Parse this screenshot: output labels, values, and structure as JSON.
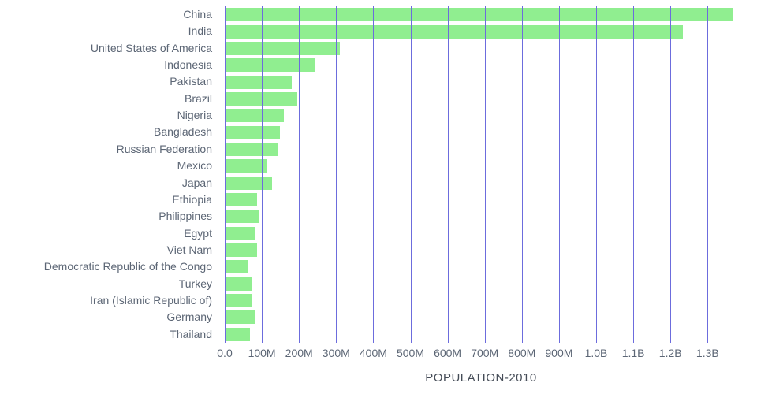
{
  "chart_data": {
    "type": "bar",
    "orientation": "horizontal",
    "title": "POPULATION-2010",
    "categories": [
      "China",
      "India",
      "United States of America",
      "Indonesia",
      "Pakistan",
      "Brazil",
      "Nigeria",
      "Bangladesh",
      "Russian Federation",
      "Mexico",
      "Japan",
      "Ethiopia",
      "Philippines",
      "Egypt",
      "Viet Nam",
      "Democratic Republic of the Congo",
      "Turkey",
      "Iran (Islamic Republic of)",
      "Germany",
      "Thailand"
    ],
    "values": [
      1368811000,
      1234281000,
      309011000,
      241834000,
      179425000,
      195714000,
      158503000,
      147575000,
      143243000,
      114093000,
      128070000,
      87640000,
      93967000,
      82761000,
      87968000,
      64564000,
      72326000,
      74573000,
      80827000,
      67195000
    ],
    "x_ticks": [
      {
        "value": 0,
        "label": "0.0"
      },
      {
        "value": 100000000,
        "label": "100M"
      },
      {
        "value": 200000000,
        "label": "200M"
      },
      {
        "value": 300000000,
        "label": "300M"
      },
      {
        "value": 400000000,
        "label": "400M"
      },
      {
        "value": 500000000,
        "label": "500M"
      },
      {
        "value": 600000000,
        "label": "600M"
      },
      {
        "value": 700000000,
        "label": "700M"
      },
      {
        "value": 800000000,
        "label": "800M"
      },
      {
        "value": 900000000,
        "label": "900M"
      },
      {
        "value": 1000000000,
        "label": "1.0B"
      },
      {
        "value": 1100000000,
        "label": "1.1B"
      },
      {
        "value": 1200000000,
        "label": "1.2B"
      },
      {
        "value": 1300000000,
        "label": "1.3B"
      }
    ],
    "xlim": [
      0,
      1380000000
    ],
    "grid": true,
    "legend": "none",
    "bar_color": "#90ee90",
    "grid_color": "#6c6cdd",
    "label_color": "#5c6675"
  }
}
